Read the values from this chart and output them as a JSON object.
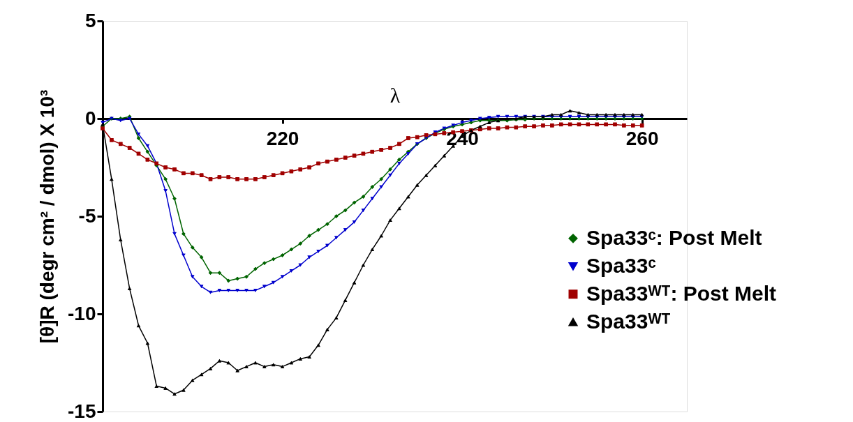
{
  "chart_data": {
    "type": "line",
    "xlabel": "λ",
    "ylabel": "[θ]R (degr cm² / dmol) X 10³",
    "x": [
      200,
      201,
      202,
      203,
      204,
      205,
      206,
      207,
      208,
      209,
      210,
      211,
      212,
      213,
      214,
      215,
      216,
      217,
      218,
      219,
      220,
      221,
      222,
      223,
      224,
      225,
      226,
      227,
      228,
      229,
      230,
      231,
      232,
      233,
      234,
      235,
      236,
      237,
      238,
      239,
      240,
      241,
      242,
      243,
      244,
      245,
      246,
      247,
      248,
      249,
      250,
      251,
      252,
      253,
      254,
      255,
      256,
      257,
      258,
      259,
      260
    ],
    "xlim": [
      200,
      265
    ],
    "xticks": [
      220,
      240,
      260
    ],
    "ylim": [
      -15,
      5
    ],
    "yticks": [
      -15,
      -10,
      -5,
      0,
      5
    ],
    "grid": false,
    "legend": "right",
    "series": [
      {
        "name": "Spa33ᶜ: Post Melt",
        "color": "#006400",
        "marker": "diamond",
        "values": [
          -0.4,
          0,
          0,
          0.1,
          -1.0,
          -1.7,
          -2.4,
          -3.1,
          -4.1,
          -5.9,
          -6.6,
          -7.1,
          -7.9,
          -7.9,
          -8.3,
          -8.2,
          -8.1,
          -7.7,
          -7.4,
          -7.2,
          -7.0,
          -6.7,
          -6.4,
          -6.0,
          -5.7,
          -5.4,
          -5.0,
          -4.7,
          -4.3,
          -4.0,
          -3.5,
          -3.1,
          -2.6,
          -2.1,
          -1.7,
          -1.3,
          -1.0,
          -0.75,
          -0.55,
          -0.4,
          -0.3,
          -0.2,
          -0.1,
          -0.1,
          -0.1,
          -0.1,
          -0.05,
          -0.05,
          0,
          0,
          0,
          0,
          0,
          0,
          0,
          0,
          0,
          0,
          0,
          0,
          0
        ]
      },
      {
        "name": "Spa33ᶜ",
        "color": "#0000cd",
        "marker": "triangle-down",
        "values": [
          -0.2,
          0,
          -0.1,
          0,
          -0.8,
          -1.4,
          -2.3,
          -3.7,
          -5.9,
          -7.0,
          -8.1,
          -8.6,
          -8.9,
          -8.8,
          -8.8,
          -8.8,
          -8.8,
          -8.8,
          -8.6,
          -8.4,
          -8.1,
          -7.8,
          -7.5,
          -7.1,
          -6.8,
          -6.5,
          -6.1,
          -5.7,
          -5.3,
          -4.7,
          -4.1,
          -3.5,
          -2.9,
          -2.3,
          -1.8,
          -1.3,
          -1.0,
          -0.7,
          -0.5,
          -0.35,
          -0.2,
          -0.1,
          0,
          0.05,
          0.1,
          0.1,
          0.1,
          0.1,
          0.1,
          0.1,
          0.1,
          0.1,
          0.1,
          0.1,
          0.1,
          0.1,
          0.1,
          0.1,
          0.1,
          0.1,
          0.1
        ]
      },
      {
        "name": "Spa33ᵂᵀ: Post Melt",
        "color": "#a00000",
        "marker": "square",
        "values": [
          -0.5,
          -1.1,
          -1.3,
          -1.5,
          -1.8,
          -2.1,
          -2.3,
          -2.5,
          -2.6,
          -2.8,
          -2.8,
          -2.9,
          -3.1,
          -3.0,
          -3.0,
          -3.1,
          -3.1,
          -3.1,
          -3.0,
          -2.9,
          -2.8,
          -2.7,
          -2.6,
          -2.5,
          -2.3,
          -2.2,
          -2.1,
          -2.0,
          -1.9,
          -1.8,
          -1.7,
          -1.6,
          -1.5,
          -1.3,
          -1.0,
          -0.95,
          -0.85,
          -0.8,
          -0.75,
          -0.7,
          -0.65,
          -0.6,
          -0.55,
          -0.5,
          -0.5,
          -0.45,
          -0.45,
          -0.4,
          -0.4,
          -0.35,
          -0.35,
          -0.3,
          -0.3,
          -0.3,
          -0.3,
          -0.3,
          -0.3,
          -0.3,
          -0.35,
          -0.35,
          -0.35
        ]
      },
      {
        "name": "Spa33ᵂᵀ",
        "color": "#000000",
        "marker": "triangle",
        "values": [
          -0.3,
          -3.1,
          -6.2,
          -8.7,
          -10.6,
          -11.5,
          -13.7,
          -13.8,
          -14.1,
          -13.9,
          -13.4,
          -13.1,
          -12.8,
          -12.4,
          -12.5,
          -12.9,
          -12.7,
          -12.5,
          -12.7,
          -12.6,
          -12.7,
          -12.5,
          -12.3,
          -12.2,
          -11.6,
          -10.8,
          -10.2,
          -9.3,
          -8.4,
          -7.5,
          -6.7,
          -6.0,
          -5.2,
          -4.6,
          -4.0,
          -3.4,
          -2.9,
          -2.4,
          -1.9,
          -1.4,
          -0.9,
          -0.6,
          -0.4,
          -0.2,
          -0.1,
          0,
          0,
          0.1,
          0.1,
          0.1,
          0.2,
          0.2,
          0.4,
          0.3,
          0.2,
          0.2,
          0.2,
          0.2,
          0.2,
          0.2,
          0.2
        ]
      }
    ]
  }
}
